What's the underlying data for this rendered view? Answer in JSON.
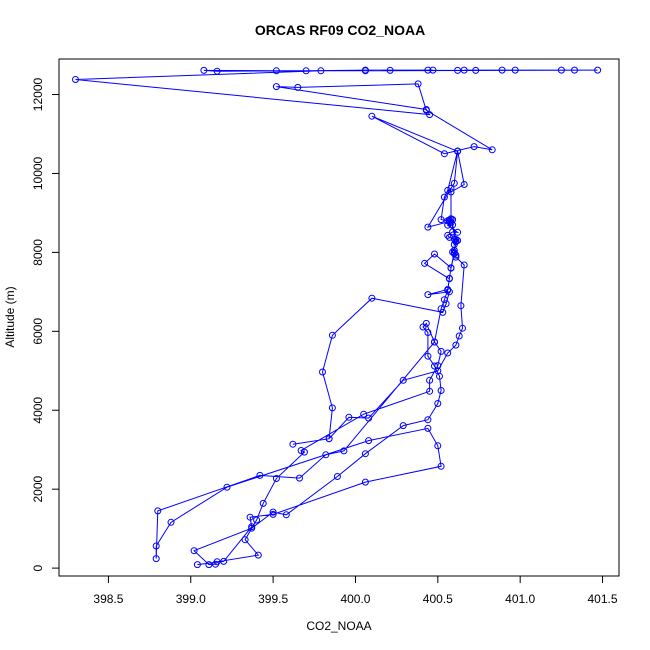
{
  "chart_data": {
    "type": "line",
    "title": "ORCAS RF09 CO2_NOAA",
    "xlabel": "CO2_NOAA",
    "ylabel": "Altitude (m)",
    "xlim": [
      398.2,
      401.6
    ],
    "ylim": [
      -200,
      12900
    ],
    "xticks": [
      398.5,
      399.0,
      399.5,
      400.0,
      400.5,
      401.0,
      401.5
    ],
    "xtick_labels": [
      "398.5",
      "399.0",
      "399.5",
      "400.0",
      "400.5",
      "401.0",
      "401.5"
    ],
    "yticks": [
      0,
      2000,
      4000,
      6000,
      8000,
      10000,
      12000
    ],
    "ytick_labels": [
      "0",
      "2000",
      "4000",
      "6000",
      "8000",
      "10000",
      "12000"
    ],
    "grid": false,
    "marker": "open-circle",
    "series": [
      {
        "color": "#0000ff",
        "points": [
          [
            400.47,
            12620
          ],
          [
            400.44,
            12620
          ],
          [
            400.06,
            12620
          ],
          [
            399.7,
            12600
          ],
          [
            399.52,
            12600
          ],
          [
            399.08,
            12610
          ],
          [
            399.16,
            12590
          ],
          [
            400.21,
            12610
          ],
          [
            400.62,
            12610
          ],
          [
            400.73,
            12610
          ],
          [
            400.97,
            12620
          ],
          [
            401.33,
            12620
          ],
          [
            401.25,
            12620
          ],
          [
            400.89,
            12620
          ],
          [
            400.66,
            12620
          ],
          [
            401.47,
            12620
          ],
          [
            400.06,
            12600
          ],
          [
            399.79,
            12600
          ],
          [
            398.3,
            12380
          ],
          [
            400.45,
            11490
          ],
          [
            400.43,
            11620
          ],
          [
            399.52,
            12200
          ],
          [
            399.65,
            12180
          ],
          [
            400.38,
            12270
          ],
          [
            400.43,
            11600
          ],
          [
            400.83,
            10600
          ],
          [
            400.72,
            10680
          ],
          [
            400.54,
            10500
          ],
          [
            400.1,
            11450
          ],
          [
            400.62,
            10560
          ],
          [
            400.6,
            9750
          ],
          [
            400.58,
            9620
          ],
          [
            400.44,
            8640
          ],
          [
            400.57,
            8780
          ],
          [
            400.58,
            8830
          ],
          [
            400.61,
            8280
          ],
          [
            400.6,
            8000
          ],
          [
            400.58,
            7610
          ],
          [
            400.48,
            7960
          ],
          [
            400.42,
            7720
          ],
          [
            400.57,
            7330
          ],
          [
            400.56,
            7060
          ],
          [
            400.44,
            6930
          ],
          [
            400.57,
            7000
          ],
          [
            400.55,
            6700
          ],
          [
            400.53,
            6480
          ],
          [
            400.1,
            6840
          ],
          [
            399.86,
            5900
          ],
          [
            399.8,
            4970
          ],
          [
            399.86,
            4060
          ],
          [
            399.84,
            3280
          ],
          [
            399.62,
            3140
          ],
          [
            399.84,
            3280
          ],
          [
            399.96,
            3820
          ],
          [
            400.08,
            3800
          ],
          [
            400.29,
            4760
          ],
          [
            400.5,
            5000
          ],
          [
            400.56,
            5450
          ],
          [
            400.61,
            5650
          ],
          [
            400.63,
            5880
          ],
          [
            400.65,
            6080
          ],
          [
            400.64,
            6650
          ],
          [
            400.66,
            7680
          ],
          [
            400.61,
            7880
          ],
          [
            400.61,
            7930
          ],
          [
            400.6,
            8050
          ],
          [
            400.61,
            8270
          ],
          [
            400.6,
            8200
          ],
          [
            400.6,
            8340
          ],
          [
            400.57,
            8380
          ],
          [
            400.56,
            8430
          ],
          [
            400.59,
            8520
          ],
          [
            400.62,
            8510
          ],
          [
            400.56,
            8690
          ],
          [
            400.58,
            8750
          ],
          [
            400.56,
            8800
          ],
          [
            400.52,
            8830
          ],
          [
            400.54,
            9400
          ],
          [
            400.56,
            9570
          ],
          [
            400.62,
            10570
          ],
          [
            400.66,
            9720
          ],
          [
            400.58,
            9530
          ],
          [
            400.58,
            8850
          ],
          [
            400.57,
            8820
          ],
          [
            400.59,
            8830
          ],
          [
            400.59,
            8700
          ],
          [
            400.61,
            8330
          ],
          [
            400.62,
            8300
          ],
          [
            400.59,
            8010
          ],
          [
            400.6,
            7970
          ],
          [
            400.58,
            7600
          ],
          [
            400.57,
            7340
          ],
          [
            400.56,
            7040
          ],
          [
            400.54,
            6800
          ],
          [
            400.52,
            6570
          ],
          [
            400.48,
            5730
          ],
          [
            400.52,
            5490
          ],
          [
            400.5,
            5130
          ],
          [
            400.45,
            4760
          ],
          [
            400.45,
            4480
          ],
          [
            400.05,
            3900
          ],
          [
            399.67,
            2980
          ],
          [
            399.69,
            2940
          ],
          [
            399.52,
            2270
          ],
          [
            399.44,
            1640
          ],
          [
            399.4,
            1220
          ],
          [
            399.33,
            720
          ],
          [
            399.41,
            330
          ],
          [
            399.16,
            160
          ],
          [
            399.15,
            100
          ],
          [
            399.11,
            90
          ],
          [
            399.02,
            440
          ],
          [
            399.37,
            1010
          ],
          [
            399.5,
            1420
          ],
          [
            399.58,
            1350
          ],
          [
            399.89,
            2320
          ],
          [
            400.06,
            2900
          ],
          [
            400.29,
            3610
          ],
          [
            400.44,
            3760
          ],
          [
            400.5,
            4170
          ],
          [
            400.52,
            4500
          ],
          [
            400.51,
            4860
          ],
          [
            400.48,
            5120
          ],
          [
            400.44,
            5370
          ],
          [
            400.44,
            5970
          ],
          [
            400.41,
            6110
          ],
          [
            400.43,
            6200
          ],
          [
            400.48,
            5730
          ],
          [
            399.93,
            2970
          ],
          [
            399.82,
            2870
          ],
          [
            399.66,
            2280
          ],
          [
            399.42,
            2350
          ],
          [
            398.8,
            1450
          ],
          [
            398.79,
            240
          ],
          [
            398.79,
            560
          ],
          [
            398.88,
            1160
          ],
          [
            399.22,
            2050
          ],
          [
            400.08,
            3230
          ],
          [
            400.44,
            3540
          ],
          [
            400.5,
            3100
          ],
          [
            400.52,
            2580
          ],
          [
            400.06,
            2180
          ],
          [
            399.5,
            1360
          ],
          [
            399.36,
            1290
          ],
          [
            399.37,
            1050
          ],
          [
            399.2,
            170
          ],
          [
            399.04,
            90
          ]
        ]
      }
    ]
  }
}
